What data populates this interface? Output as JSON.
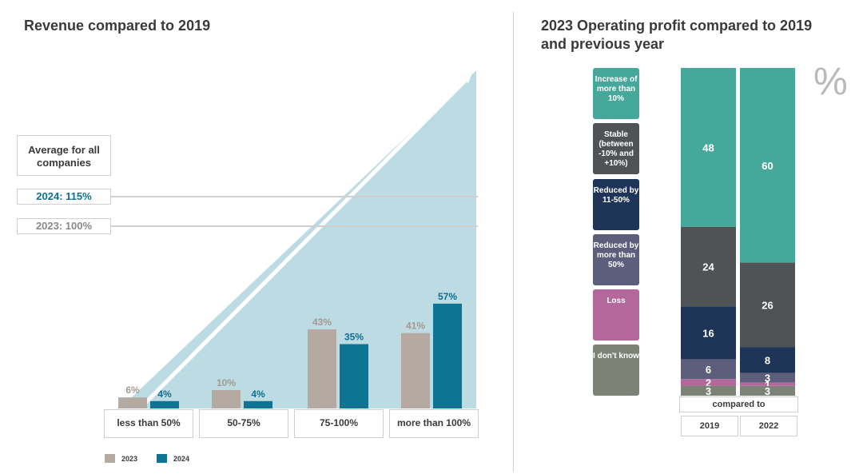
{
  "left_title": "Revenue compared to 2019",
  "right_title": "2023 Operating profit compared to 2019 and previous year",
  "avg_box": "Average for all companies",
  "ref_2024": "2024: 115%",
  "ref_2023": "2023: 100%",
  "legend": {
    "y2023": "2023",
    "y2024": "2024"
  },
  "percent_sign": "%",
  "compared_to": "compared to",
  "colors": {
    "c2023": "#b5aaa1",
    "c2024": "#0f7393",
    "triangle": "#bcdbe2"
  },
  "chart_data": [
    {
      "type": "bar",
      "title": "Revenue compared to 2019",
      "categories": [
        "less than 50%",
        "50-75%",
        "75-100%",
        "more than 100%"
      ],
      "series": [
        {
          "name": "2023",
          "values": [
            6,
            10,
            43,
            41
          ],
          "labels": [
            "6%",
            "10%",
            "43%",
            "41%"
          ]
        },
        {
          "name": "2024",
          "values": [
            4,
            4,
            35,
            57
          ],
          "labels": [
            "4%",
            "4%",
            "35%",
            "57%"
          ]
        }
      ],
      "reference_lines": [
        {
          "label": "2024: 115%",
          "value": 115
        },
        {
          "label": "2023: 100%",
          "value": 100
        }
      ],
      "ylabel": "",
      "xlabel": ""
    },
    {
      "type": "bar",
      "stacked": true,
      "title": "2023 Operating profit compared to 2019 and previous year",
      "unit": "%",
      "categories": [
        "2019",
        "2022"
      ],
      "series": [
        {
          "name": "Increase of more than 10%",
          "color": "#45a89a",
          "values": [
            48,
            60
          ]
        },
        {
          "name": "Stable (between -10% and +10%)",
          "color": "#4f5356",
          "values": [
            24,
            26
          ]
        },
        {
          "name": "Reduced by 11-50%",
          "color": "#1f3558",
          "values": [
            16,
            8
          ]
        },
        {
          "name": "Reduced by more than 50%",
          "color": "#5d5d7c",
          "values": [
            6,
            3
          ]
        },
        {
          "name": "Loss",
          "color": "#b4679a",
          "values": [
            2,
            1
          ]
        },
        {
          "name": "I don't know",
          "color": "#7c8376",
          "values": [
            3,
            3
          ]
        }
      ]
    }
  ]
}
